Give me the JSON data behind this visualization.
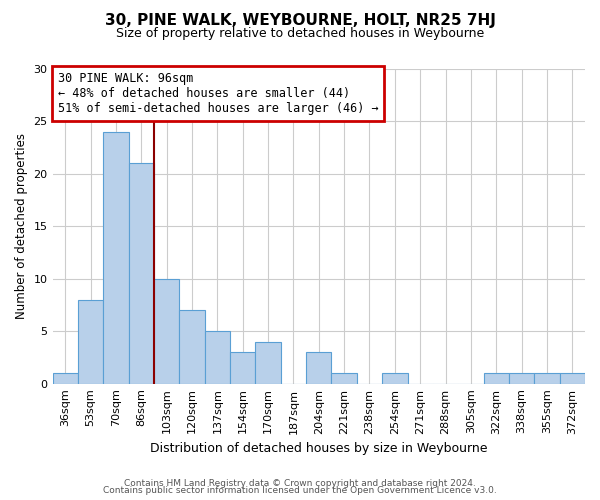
{
  "title": "30, PINE WALK, WEYBOURNE, HOLT, NR25 7HJ",
  "subtitle": "Size of property relative to detached houses in Weybourne",
  "xlabel": "Distribution of detached houses by size in Weybourne",
  "ylabel": "Number of detached properties",
  "footer_lines": [
    "Contains HM Land Registry data © Crown copyright and database right 2024.",
    "Contains public sector information licensed under the Open Government Licence v3.0."
  ],
  "bin_labels": [
    "36sqm",
    "53sqm",
    "70sqm",
    "86sqm",
    "103sqm",
    "120sqm",
    "137sqm",
    "154sqm",
    "170sqm",
    "187sqm",
    "204sqm",
    "221sqm",
    "238sqm",
    "254sqm",
    "271sqm",
    "288sqm",
    "305sqm",
    "322sqm",
    "338sqm",
    "355sqm",
    "372sqm"
  ],
  "bar_values": [
    1,
    8,
    24,
    21,
    10,
    7,
    5,
    3,
    4,
    0,
    3,
    1,
    0,
    1,
    0,
    0,
    0,
    1,
    1,
    1,
    1
  ],
  "bar_color": "#b8d0ea",
  "bar_edge_color": "#5a9fd4",
  "ylim": [
    0,
    30
  ],
  "yticks": [
    0,
    5,
    10,
    15,
    20,
    25,
    30
  ],
  "annotation_title": "30 PINE WALK: 96sqm",
  "annotation_line1": "← 48% of detached houses are smaller (44)",
  "annotation_line2": "51% of semi-detached houses are larger (46) →",
  "annotation_box_color": "#ffffff",
  "annotation_box_edge_color": "#cc0000",
  "property_line_x": 3.5,
  "property_line_color": "#8b0000",
  "background_color": "#ffffff",
  "grid_color": "#cccccc"
}
